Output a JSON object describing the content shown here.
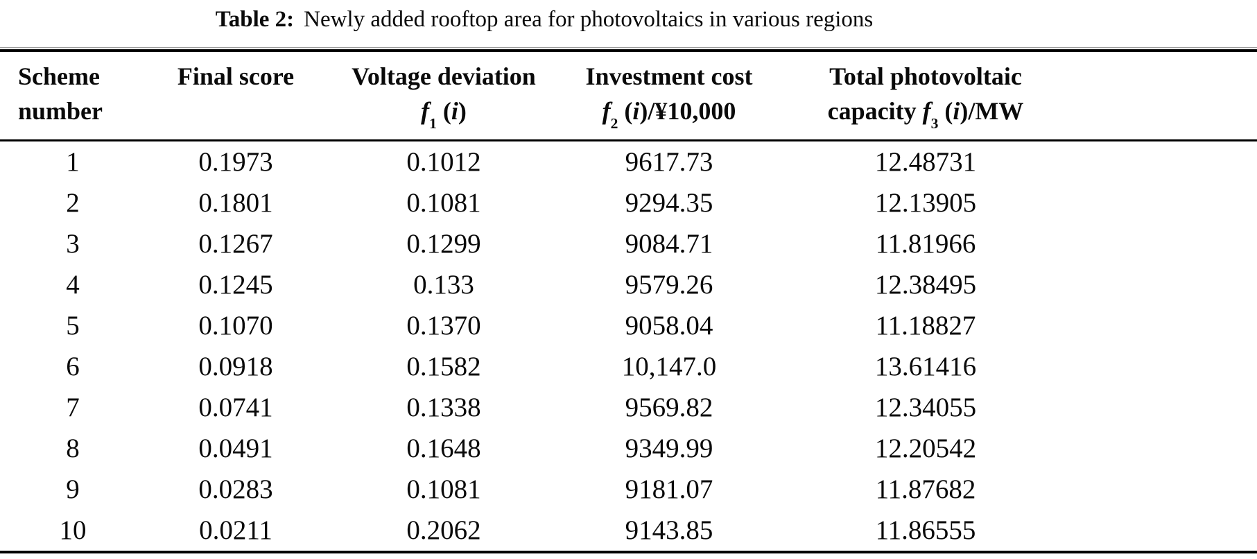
{
  "title": {
    "label": "Table 2:",
    "text": "Newly added rooftop area for photovoltaics in various regions"
  },
  "colors": {
    "text": "#0a0a0a",
    "rule_black": "#000000",
    "rule_gray": "#9b9b9b",
    "background": "#ffffff"
  },
  "table": {
    "columns": [
      {
        "id": "scheme",
        "line1": "Scheme",
        "line2_segments": [
          {
            "t": "number"
          }
        ]
      },
      {
        "id": "final_score",
        "line1": "Final score",
        "line2_segments": []
      },
      {
        "id": "voltage_deviation",
        "line1": "Voltage deviation",
        "line2_segments": [
          {
            "t": "f",
            "i": true
          },
          {
            "t": "1",
            "sub": true
          },
          {
            "t": " ("
          },
          {
            "t": "i",
            "i": true
          },
          {
            "t": ")"
          }
        ]
      },
      {
        "id": "investment_cost",
        "line1": "Investment cost",
        "line2_segments": [
          {
            "t": "f",
            "i": true
          },
          {
            "t": "2",
            "sub": true
          },
          {
            "t": " ("
          },
          {
            "t": "i",
            "i": true
          },
          {
            "t": ")/¥10,000"
          }
        ]
      },
      {
        "id": "pv_capacity",
        "line1": "Total photovoltaic",
        "line2_segments": [
          {
            "t": "capacity "
          },
          {
            "t": "f",
            "i": true
          },
          {
            "t": "3",
            "sub": true
          },
          {
            "t": " ("
          },
          {
            "t": "i",
            "i": true
          },
          {
            "t": ")/MW"
          }
        ]
      }
    ],
    "rows": [
      {
        "scheme": "1",
        "final_score": "0.1973",
        "voltage_deviation": "0.1012",
        "investment_cost": "9617.73",
        "pv_capacity": "12.48731"
      },
      {
        "scheme": "2",
        "final_score": "0.1801",
        "voltage_deviation": "0.1081",
        "investment_cost": "9294.35",
        "pv_capacity": "12.13905"
      },
      {
        "scheme": "3",
        "final_score": "0.1267",
        "voltage_deviation": "0.1299",
        "investment_cost": "9084.71",
        "pv_capacity": "11.81966"
      },
      {
        "scheme": "4",
        "final_score": "0.1245",
        "voltage_deviation": "0.133",
        "investment_cost": "9579.26",
        "pv_capacity": "12.38495"
      },
      {
        "scheme": "5",
        "final_score": "0.1070",
        "voltage_deviation": "0.1370",
        "investment_cost": "9058.04",
        "pv_capacity": "11.18827"
      },
      {
        "scheme": "6",
        "final_score": "0.0918",
        "voltage_deviation": "0.1582",
        "investment_cost": "10,147.0",
        "pv_capacity": "13.61416"
      },
      {
        "scheme": "7",
        "final_score": "0.0741",
        "voltage_deviation": "0.1338",
        "investment_cost": "9569.82",
        "pv_capacity": "12.34055"
      },
      {
        "scheme": "8",
        "final_score": "0.0491",
        "voltage_deviation": "0.1648",
        "investment_cost": "9349.99",
        "pv_capacity": "12.20542"
      },
      {
        "scheme": "9",
        "final_score": "0.0283",
        "voltage_deviation": "0.1081",
        "investment_cost": "9181.07",
        "pv_capacity": "11.87682"
      },
      {
        "scheme": "10",
        "final_score": "0.0211",
        "voltage_deviation": "0.2062",
        "investment_cost": "9143.85",
        "pv_capacity": "11.86555"
      }
    ]
  }
}
